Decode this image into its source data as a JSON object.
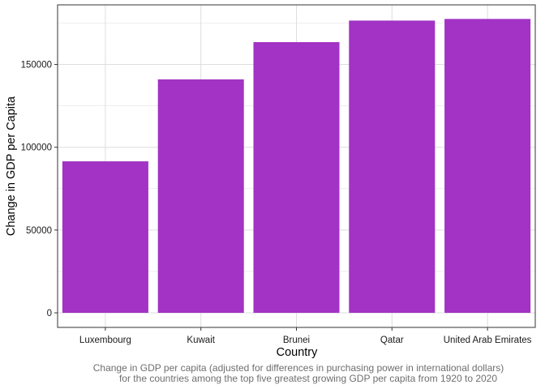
{
  "chart_data": {
    "type": "bar",
    "categories": [
      "Luxembourg",
      "Kuwait",
      "Brunei",
      "Qatar",
      "United Arab Emirates"
    ],
    "values": [
      91500,
      141000,
      163500,
      176500,
      177500
    ],
    "xlabel": "Country",
    "ylabel": "Change in GDP per Capita",
    "ylim": [
      -8800,
      186000
    ],
    "yticks": [
      0,
      50000,
      100000,
      150000
    ],
    "ytick_labels": [
      "0",
      "50000",
      "100000",
      "150000"
    ],
    "grid": true,
    "bar_color": "#A233C4",
    "panel_border_color": "#333333",
    "grid_color": "#DDDDDD",
    "caption": [
      "Change in GDP per capita (adjusted for differences in purchasing power in international dollars)",
      "for the countries among the top five greatest growing GDP per capita from 1920 to 2020"
    ]
  }
}
